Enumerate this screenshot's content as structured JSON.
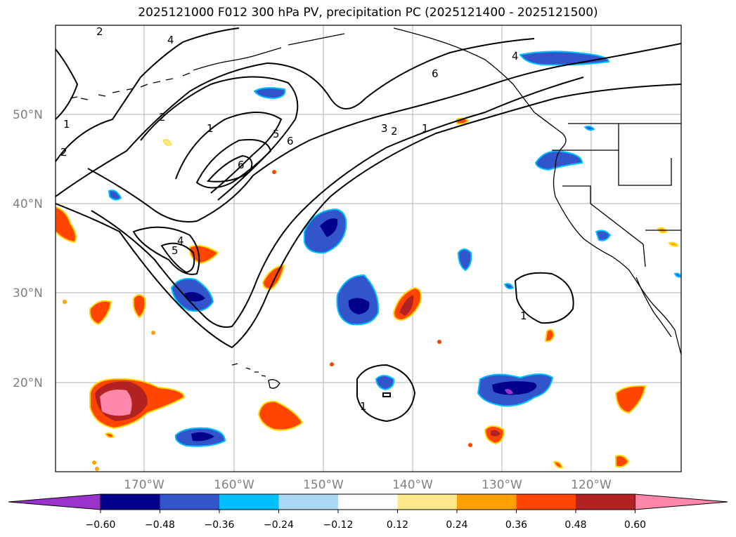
{
  "title": "2025121000 F012 300 hPa PV, precipitation PC (2025121400 - 2025121500)",
  "colors": {
    "land_outline": "#000000",
    "gridline": "#b0b0b0",
    "grid_label": "#808080"
  },
  "latitude_labels": [
    "50°N",
    "40°N",
    "30°N",
    "20°N"
  ],
  "longitude_labels": [
    "170°W",
    "160°W",
    "150°W",
    "140°W",
    "130°W",
    "120°W"
  ],
  "pv_contour_labels": [
    "1",
    "2",
    "2",
    "2",
    "4",
    "4",
    "5",
    "5",
    "6",
    "1",
    "6",
    "3",
    "2",
    "1",
    "6",
    "4",
    "1",
    "1"
  ],
  "colorbar": {
    "levels": [
      "−0.60",
      "−0.48",
      "−0.36",
      "−0.24",
      "−0.12",
      "0.12",
      "0.24",
      "0.36",
      "0.48",
      "0.60"
    ],
    "colors": [
      "#9933cc",
      "#00008b",
      "#3355cc",
      "#00bfff",
      "#add8f5",
      "#ffffff",
      "#ffe88a",
      "#ffa000",
      "#ff4500",
      "#b22222",
      "#ff88aa"
    ]
  }
}
